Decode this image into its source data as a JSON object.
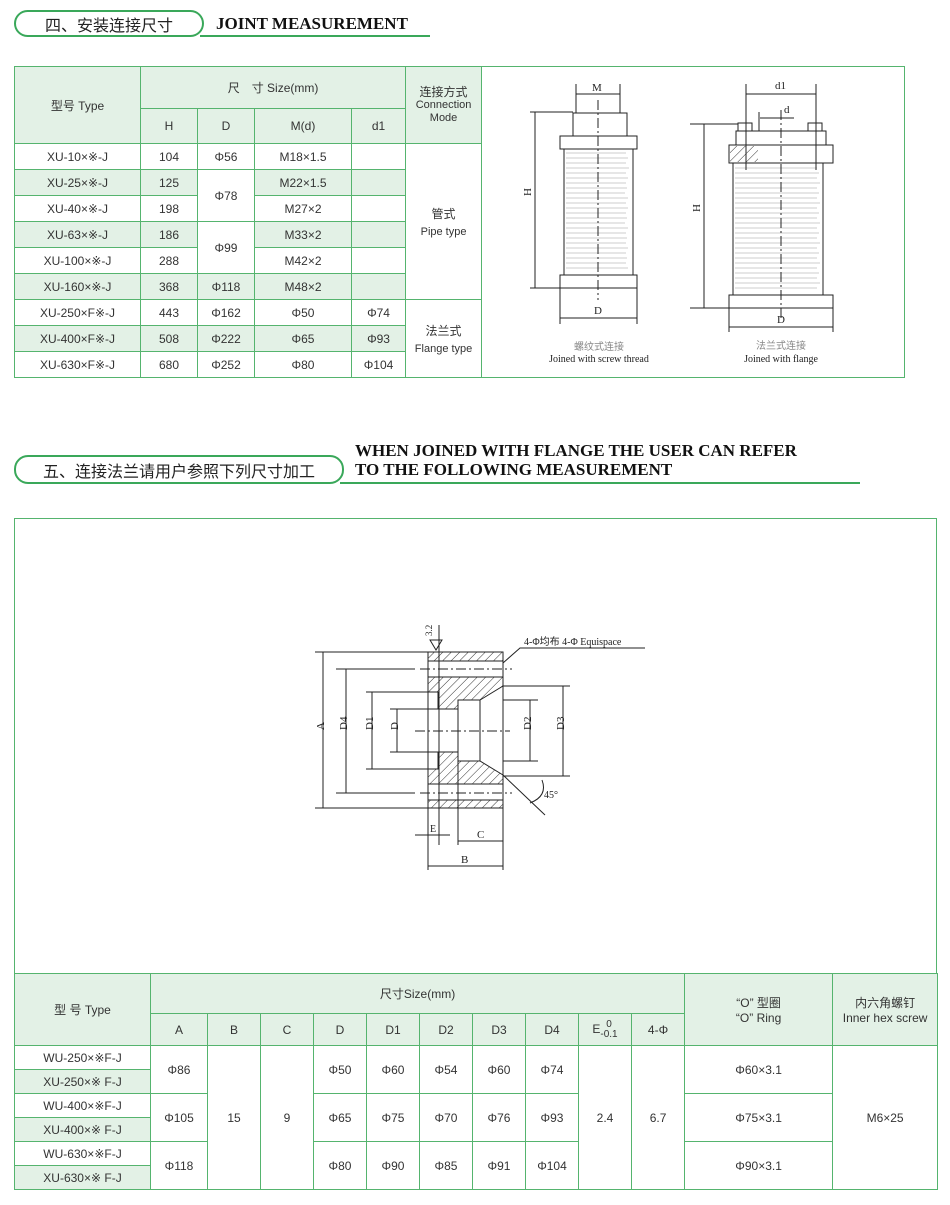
{
  "section4": {
    "title_cn": "四、安装连接尺寸",
    "title_en": "JOINT MEASUREMENT",
    "table": {
      "type_header": "型号 Type",
      "size_header": "尺　寸 Size(mm)",
      "mode_header_cn": "连接方式",
      "mode_header_en": "Connection Mode",
      "columns": [
        "H",
        "D",
        "M(d)",
        "d1"
      ],
      "rows": [
        {
          "type": "XU-10×※-J",
          "H": "104",
          "D": "Φ56",
          "M": "M18×1.5",
          "d1": ""
        },
        {
          "type": "XU-25×※-J",
          "H": "125",
          "D": "Φ78",
          "M": "M22×1.5",
          "d1": ""
        },
        {
          "type": "XU-40×※-J",
          "H": "198",
          "D": "",
          "M": "M27×2",
          "d1": ""
        },
        {
          "type": "XU-63×※-J",
          "H": "186",
          "D": "Φ99",
          "M": "M33×2",
          "d1": ""
        },
        {
          "type": "XU-100×※-J",
          "H": "288",
          "D": "",
          "M": "M42×2",
          "d1": ""
        },
        {
          "type": "XU-160×※-J",
          "H": "368",
          "D": "Φ118",
          "M": "M48×2",
          "d1": ""
        },
        {
          "type": "XU-250×F※-J",
          "H": "443",
          "D": "Φ162",
          "M": "Φ50",
          "d1": "Φ74"
        },
        {
          "type": "XU-400×F※-J",
          "H": "508",
          "D": "Φ222",
          "M": "Φ65",
          "d1": "Φ93"
        },
        {
          "type": "XU-630×F※-J",
          "H": "680",
          "D": "Φ252",
          "M": "Φ80",
          "d1": "Φ104"
        }
      ],
      "pipe_cn": "管式",
      "pipe_en": "Pipe type",
      "flange_cn": "法兰式",
      "flange_en": "Flange type"
    },
    "drawing": {
      "screw": {
        "M": "M",
        "H": "H",
        "D": "D",
        "caption_cn": "螺纹式连接",
        "caption_en": "Joined with screw thread"
      },
      "flange": {
        "d1": "d1",
        "d": "d",
        "H": "H",
        "D": "D",
        "caption_cn": "法兰式连接",
        "caption_en": "Joined with flange"
      }
    }
  },
  "section5": {
    "title_cn": "五、连接法兰请用户参照下列尺寸加工",
    "title_en_line1": "WHEN JOINED WITH FLANGE THE USER CAN REFER",
    "title_en_line2": "TO THE FOLLOWING MEASUREMENT",
    "drawing": {
      "roughness": "3.2",
      "note": "4-Φ均布 4-Φ Equispace",
      "A": "A",
      "D4": "D4",
      "D1": "D1",
      "D": "D",
      "D2": "D2",
      "D3": "D3",
      "E": "E",
      "C": "C",
      "B": "B",
      "angle": "45°"
    },
    "table": {
      "type_header": "型 号 Type",
      "size_header": "尺寸Size(mm)",
      "columns": [
        "A",
        "B",
        "C",
        "D",
        "D1",
        "D2",
        "D3",
        "D4",
        "E",
        "4-Φ"
      ],
      "e_tolerance_upper": "0",
      "e_tolerance_lower": "-0.1",
      "oring_header_cn": "“O” 型圈",
      "oring_header_en": "“O” Ring",
      "screw_header_cn": "内六角螺钉",
      "screw_header_en": "Inner hex screw",
      "types": [
        "WU-250×※F-J",
        "XU-250×※ F-J",
        "WU-400×※F-J",
        "XU-400×※ F-J",
        "WU-630×※F-J",
        "XU-630×※ F-J"
      ],
      "groups": [
        {
          "A": "Φ86",
          "D": "Φ50",
          "D1": "Φ60",
          "D2": "Φ54",
          "D3": "Φ60",
          "D4": "Φ74",
          "oring": "Φ60×3.1"
        },
        {
          "A": "Φ105",
          "D": "Φ65",
          "D1": "Φ75",
          "D2": "Φ70",
          "D3": "Φ76",
          "D4": "Φ93",
          "oring": "Φ75×3.1"
        },
        {
          "A": "Φ118",
          "D": "Φ80",
          "D1": "Φ90",
          "D2": "Φ85",
          "D3": "Φ91",
          "D4": "Φ104",
          "oring": "Φ90×3.1"
        }
      ],
      "B": "15",
      "C": "9",
      "E": "2.4",
      "four_phi": "6.7",
      "screw": "M6×25"
    }
  },
  "colors": {
    "accent_green": "#3aa85a",
    "table_border": "#55b46e",
    "row_tint": "#e3f1e6"
  }
}
